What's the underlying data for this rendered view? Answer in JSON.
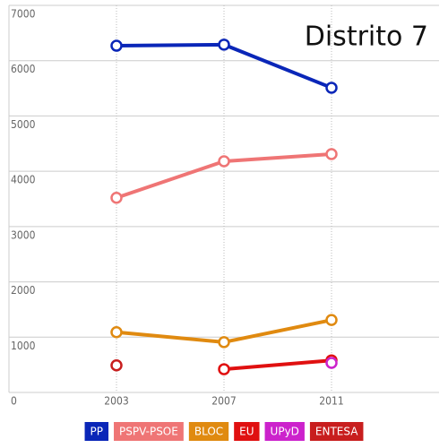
{
  "chart_data": {
    "type": "line",
    "title": "Distrito 7",
    "x": [
      2003,
      2007,
      2011
    ],
    "xlim": [
      1999,
      2015
    ],
    "xticks": [
      2003,
      2007,
      2011
    ],
    "ylim": [
      0,
      7000
    ],
    "yticks": [
      0,
      1000,
      2000,
      3000,
      4000,
      5000,
      6000,
      7000
    ],
    "grid": true,
    "legend": "bottom",
    "series": [
      {
        "name": "PP",
        "color": "#0a26b8",
        "values": [
          6270,
          6290,
          5510
        ]
      },
      {
        "name": "PSPV-PSOE",
        "color": "#ef7575",
        "values": [
          3520,
          4180,
          4310
        ]
      },
      {
        "name": "BLOC",
        "color": "#e08a10",
        "values": [
          1090,
          910,
          1310
        ]
      },
      {
        "name": "EU",
        "color": "#e01010",
        "values": [
          null,
          420,
          580
        ]
      },
      {
        "name": "UPyD",
        "color": "#cc22cc",
        "values": [
          null,
          null,
          535
        ]
      },
      {
        "name": "ENTESA",
        "color": "#c81e1e",
        "values": [
          490,
          null,
          null
        ]
      }
    ]
  }
}
